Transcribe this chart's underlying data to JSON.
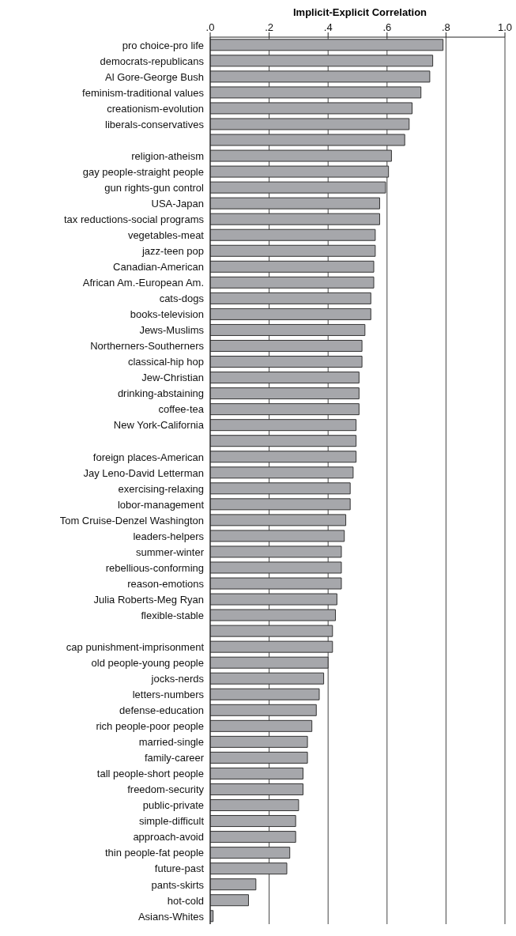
{
  "chart_data": {
    "type": "bar",
    "orientation": "horizontal",
    "title": "Implicit-Explicit Correlation",
    "categories": [
      "pro choice-pro life",
      "democrats-republicans",
      "Al Gore-George Bush",
      "feminism-traditional values",
      "creationism-evolution",
      "liberals-conservatives",
      null,
      "religion-atheism",
      "gay people-straight people",
      "gun rights-gun control",
      "USA-Japan",
      "tax reductions-social programs",
      "vegetables-meat",
      "jazz-teen pop",
      "Canadian-American",
      "African Am.-European Am.",
      "cats-dogs",
      "books-television",
      "Jews-Muslims",
      "Northerners-Southerners",
      "classical-hip hop",
      "Jew-Christian",
      "drinking-abstaining",
      "coffee-tea",
      "New York-California",
      null,
      "foreign places-American",
      "Jay Leno-David Letterman",
      "exercising-relaxing",
      "lobor-management",
      "Tom Cruise-Denzel Washington",
      "leaders-helpers",
      "summer-winter",
      "rebellious-conforming",
      "reason-emotions",
      "Julia Roberts-Meg Ryan",
      "flexible-stable",
      null,
      "cap punishment-imprisonment",
      "old people-young people",
      "jocks-nerds",
      "letters-numbers",
      "defense-education",
      "rich people-poor people",
      "married-single",
      "family-career",
      "tall people-short people",
      "freedom-security",
      "public-private",
      "simple-difficult",
      "approach-avoid",
      "thin people-fat people",
      "future-past",
      "pants-skirts",
      "hot-cold",
      "Asians-Whites"
    ],
    "values": [
      0.79,
      0.755,
      0.745,
      0.715,
      0.685,
      0.675,
      0.66,
      0.615,
      0.605,
      0.595,
      0.575,
      0.575,
      0.56,
      0.56,
      0.555,
      0.555,
      0.545,
      0.545,
      0.525,
      0.515,
      0.515,
      0.505,
      0.505,
      0.505,
      0.495,
      0.495,
      0.495,
      0.485,
      0.475,
      0.475,
      0.46,
      0.455,
      0.445,
      0.445,
      0.445,
      0.43,
      0.425,
      0.415,
      0.415,
      0.4,
      0.385,
      0.37,
      0.36,
      0.345,
      0.33,
      0.33,
      0.315,
      0.315,
      0.3,
      0.29,
      0.29,
      0.27,
      0.26,
      0.155,
      0.13,
      0.01
    ],
    "color": "#a6a7ab",
    "xlim": [
      0,
      1
    ],
    "xticks": [
      {
        "value": 0,
        "label": ".0"
      },
      {
        "value": 0.2,
        "label": ".2"
      },
      {
        "value": 0.4,
        "label": ".4"
      },
      {
        "value": 0.6,
        "label": ".6"
      },
      {
        "value": 0.8,
        "label": ".8"
      },
      {
        "value": 1,
        "label": "1.0"
      }
    ],
    "grid": "x",
    "legend": false
  }
}
